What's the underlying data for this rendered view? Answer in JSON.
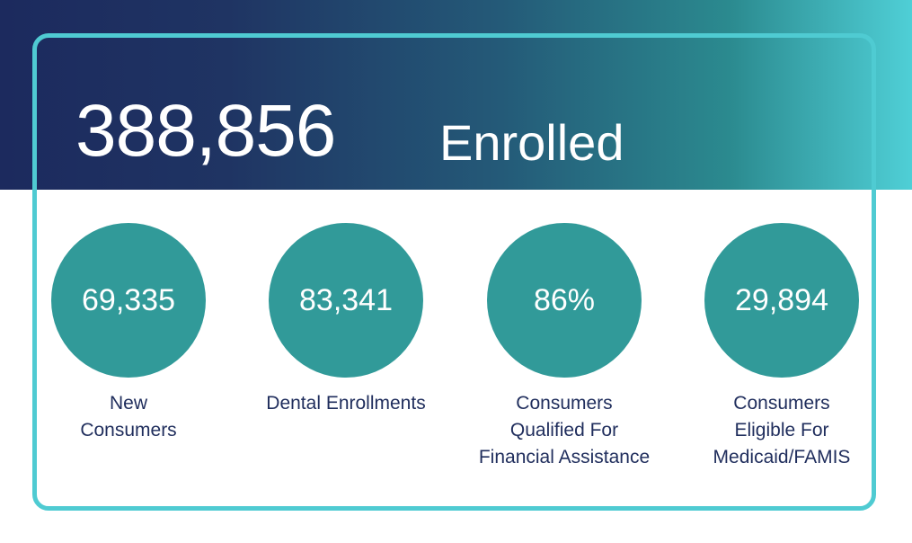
{
  "headline": {
    "total": "388,856",
    "label": "Enrolled"
  },
  "stats": [
    {
      "value": "69,335",
      "label": "New\nConsumers"
    },
    {
      "value": "83,341",
      "label": "Dental Enrollments"
    },
    {
      "value": "86%",
      "label": "Consumers\nQualified For\nFinancial Assistance"
    },
    {
      "value": "29,894",
      "label": "Consumers\nEligible For\nMedicaid/FAMIS"
    }
  ],
  "colors": {
    "banner_start": "#1c2a5e",
    "banner_end": "#4fcfd6",
    "frame": "#4fcbd2",
    "circle": "#319a99",
    "label_text": "#1f2d5c"
  }
}
